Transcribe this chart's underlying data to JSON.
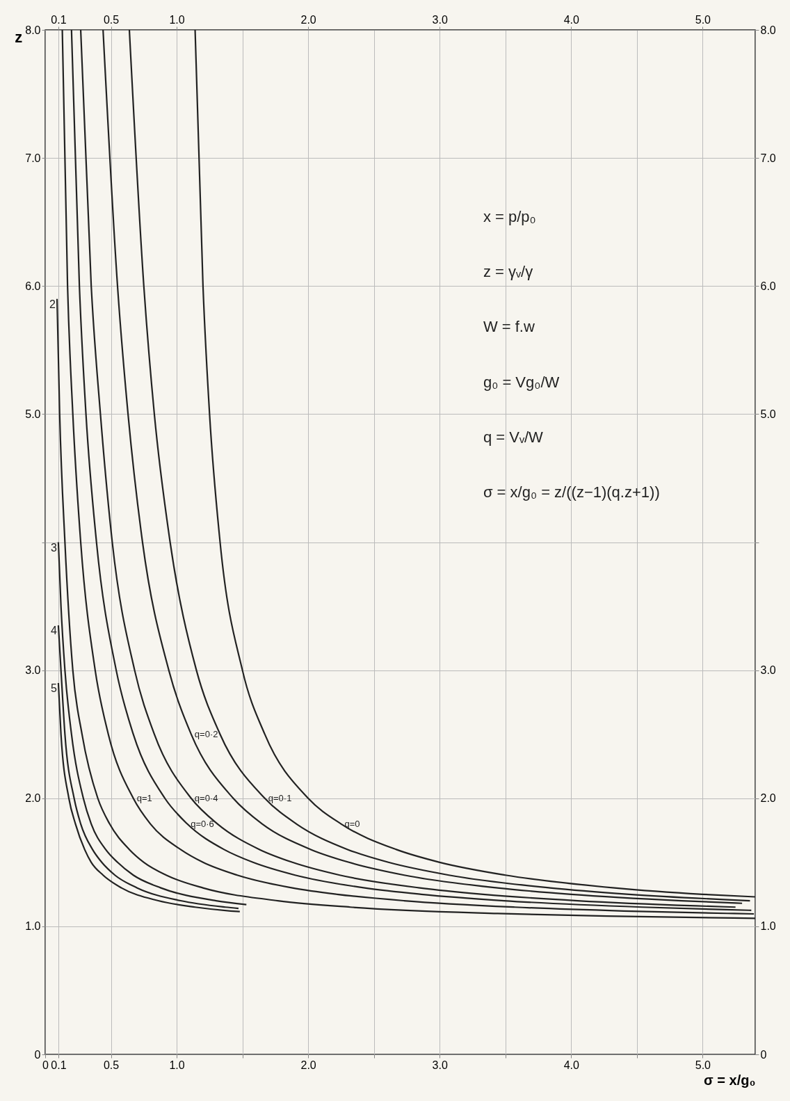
{
  "chart_data": {
    "type": "line",
    "xlabel": "σ = x/g₀",
    "ylabel": "z",
    "annotations": [
      "x = p/p₀",
      "z = γᵥ/γ",
      "W = f.w",
      "g₀ = Vg₀/W",
      "q = Vᵥ/W",
      "σ = x/g₀ = z/((z−1)(q.z+1))"
    ],
    "xlim": [
      0,
      5.4
    ],
    "ylim": [
      0,
      8
    ],
    "x2lim": [
      0,
      5.4
    ],
    "y2lim": [
      0,
      8
    ],
    "xticks": [
      0,
      0.1,
      0.5,
      {
        "value": 1,
        "label": "1.0"
      },
      {
        "value": 1.5,
        "label": null
      },
      {
        "value": 2,
        "label": "2.0"
      },
      {
        "value": 2.5,
        "label": null
      },
      {
        "value": 3,
        "label": "3.0"
      },
      {
        "value": 3.5,
        "label": null
      },
      {
        "value": 4,
        "label": "4.0"
      },
      {
        "value": 4.5,
        "label": null
      },
      {
        "value": 5,
        "label": "5.0"
      }
    ],
    "x2ticks": [
      0.1,
      0.5,
      {
        "value": 1,
        "label": "1.0"
      },
      {
        "value": 2,
        "label": "2.0"
      },
      {
        "value": 3,
        "label": "3.0"
      },
      {
        "value": 4,
        "label": "4.0"
      },
      {
        "value": 5,
        "label": "5.0"
      }
    ],
    "yticks": [
      0,
      {
        "value": 1,
        "label": "1.0"
      },
      {
        "value": 2,
        "label": "2.0"
      },
      {
        "value": 3,
        "label": "3.0"
      },
      {
        "value": 4,
        "label": null
      },
      {
        "value": 5,
        "label": "5.0"
      },
      {
        "value": 6,
        "label": "6.0"
      },
      {
        "value": 7,
        "label": "7.0"
      },
      {
        "value": 8,
        "label": "8.0"
      }
    ],
    "y2ticks": [
      0,
      {
        "value": 1,
        "label": "1.0"
      },
      {
        "value": 2,
        "label": "2.0"
      },
      {
        "value": 3,
        "label": "3.0"
      },
      {
        "value": 4,
        "label": null
      },
      {
        "value": 5,
        "label": "5.0"
      },
      {
        "value": 6,
        "label": "6.0"
      },
      {
        "value": 7,
        "label": "7.0"
      },
      {
        "value": 8,
        "label": "8.0"
      }
    ],
    "grid": true,
    "marker": "none",
    "line_style": "solid",
    "series": [
      {
        "name": "q=0",
        "color": "#222222",
        "x": [
          1.14,
          1.2,
          1.25,
          1.33,
          1.5,
          1.67,
          2.0,
          2.25,
          2.67,
          3.0,
          3.5,
          4.33,
          5.0,
          5.4
        ],
        "values": [
          8,
          6,
          5,
          4,
          3,
          2.5,
          2,
          1.8,
          1.6,
          1.5,
          1.4,
          1.3,
          1.25,
          1.23
        ]
      },
      {
        "name": "q=0·1",
        "color": "#222222",
        "x": [
          0.64,
          0.75,
          0.83,
          0.95,
          1.15,
          1.33,
          1.67,
          1.91,
          2.3,
          2.61,
          3.07,
          3.84,
          4.44,
          5.36
        ],
        "values": [
          8,
          6,
          5,
          4,
          3,
          2.5,
          2,
          1.8,
          1.6,
          1.5,
          1.4,
          1.3,
          1.25,
          1.2
        ]
      },
      {
        "name": "q=0·2",
        "color": "#222222",
        "x": [
          0.44,
          0.55,
          0.63,
          0.74,
          0.94,
          1.11,
          1.43,
          1.65,
          2.02,
          2.31,
          2.73,
          3.44,
          4.0,
          4.84,
          5.3
        ],
        "values": [
          8,
          6,
          5,
          4,
          3,
          2.5,
          2,
          1.8,
          1.6,
          1.5,
          1.4,
          1.3,
          1.25,
          1.2,
          1.18
        ]
      },
      {
        "name": "q=0·4",
        "color": "#222222",
        "x": [
          0.27,
          0.35,
          0.42,
          0.51,
          0.68,
          0.83,
          1.11,
          1.31,
          1.63,
          1.88,
          2.24,
          2.85,
          3.33,
          4.05,
          4.95,
          5.25
        ],
        "values": [
          8,
          6,
          5,
          4,
          3,
          2.5,
          2,
          1.8,
          1.6,
          1.5,
          1.4,
          1.3,
          1.25,
          1.2,
          1.16,
          1.15
        ]
      },
      {
        "name": "q=0·6",
        "color": "#222222",
        "x": [
          0.2,
          0.26,
          0.31,
          0.39,
          0.54,
          0.67,
          0.91,
          1.08,
          1.36,
          1.58,
          1.9,
          2.43,
          2.86,
          3.49,
          4.54,
          5.18,
          5.37
        ],
        "values": [
          8,
          6,
          5,
          4,
          3,
          2.5,
          2,
          1.8,
          1.6,
          1.5,
          1.4,
          1.3,
          1.25,
          1.2,
          1.15,
          1.13,
          1.125
        ]
      },
      {
        "name": "q=1",
        "color": "#222222",
        "x": [
          0.13,
          0.17,
          0.21,
          0.27,
          0.38,
          0.48,
          0.67,
          0.8,
          1.03,
          1.2,
          1.46,
          1.88,
          2.22,
          2.73,
          3.57,
          4.4,
          5.24,
          5.39
        ],
        "values": [
          8,
          6,
          5,
          4,
          3,
          2.5,
          2,
          1.8,
          1.6,
          1.5,
          1.4,
          1.3,
          1.25,
          1.2,
          1.15,
          1.12,
          1.1,
          1.097
        ]
      },
      {
        "name": "2",
        "color": "#222222",
        "x": [
          0.09,
          0.11,
          0.15,
          0.21,
          0.28,
          0.4,
          0.49,
          0.64,
          0.75,
          0.92,
          1.2,
          1.77,
          2.32,
          3.44,
          4.27,
          5.24,
          5.4
        ],
        "values": [
          5.9,
          5,
          4,
          3,
          2.5,
          2,
          1.8,
          1.6,
          1.5,
          1.4,
          1.3,
          1.2,
          1.15,
          1.1,
          1.08,
          1.065,
          1.063
        ]
      },
      {
        "name": "3",
        "color": "#222222",
        "x": [
          0.1,
          0.12,
          0.15,
          0.2,
          0.29,
          0.35,
          0.46,
          0.55,
          0.67,
          0.88,
          1.3,
          1.53
        ],
        "values": [
          4,
          3.5,
          3,
          2.5,
          2,
          1.8,
          1.6,
          1.5,
          1.4,
          1.3,
          1.2,
          1.17
        ]
      },
      {
        "name": "4",
        "color": "#222222",
        "x": [
          0.1,
          0.12,
          0.15,
          0.22,
          0.27,
          0.36,
          0.43,
          0.53,
          0.7,
          1.03,
          1.37,
          1.47
        ],
        "values": [
          3.35,
          3,
          2.5,
          2,
          1.8,
          1.6,
          1.5,
          1.4,
          1.3,
          1.2,
          1.15,
          1.14
        ]
      },
      {
        "name": "5",
        "color": "#222222",
        "x": [
          0.1,
          0.12,
          0.18,
          0.23,
          0.3,
          0.35,
          0.44,
          0.58,
          0.86,
          1.14,
          1.41,
          1.48
        ],
        "values": [
          2.9,
          2.5,
          2,
          1.8,
          1.6,
          1.5,
          1.4,
          1.3,
          1.2,
          1.15,
          1.12,
          1.115
        ]
      }
    ]
  }
}
